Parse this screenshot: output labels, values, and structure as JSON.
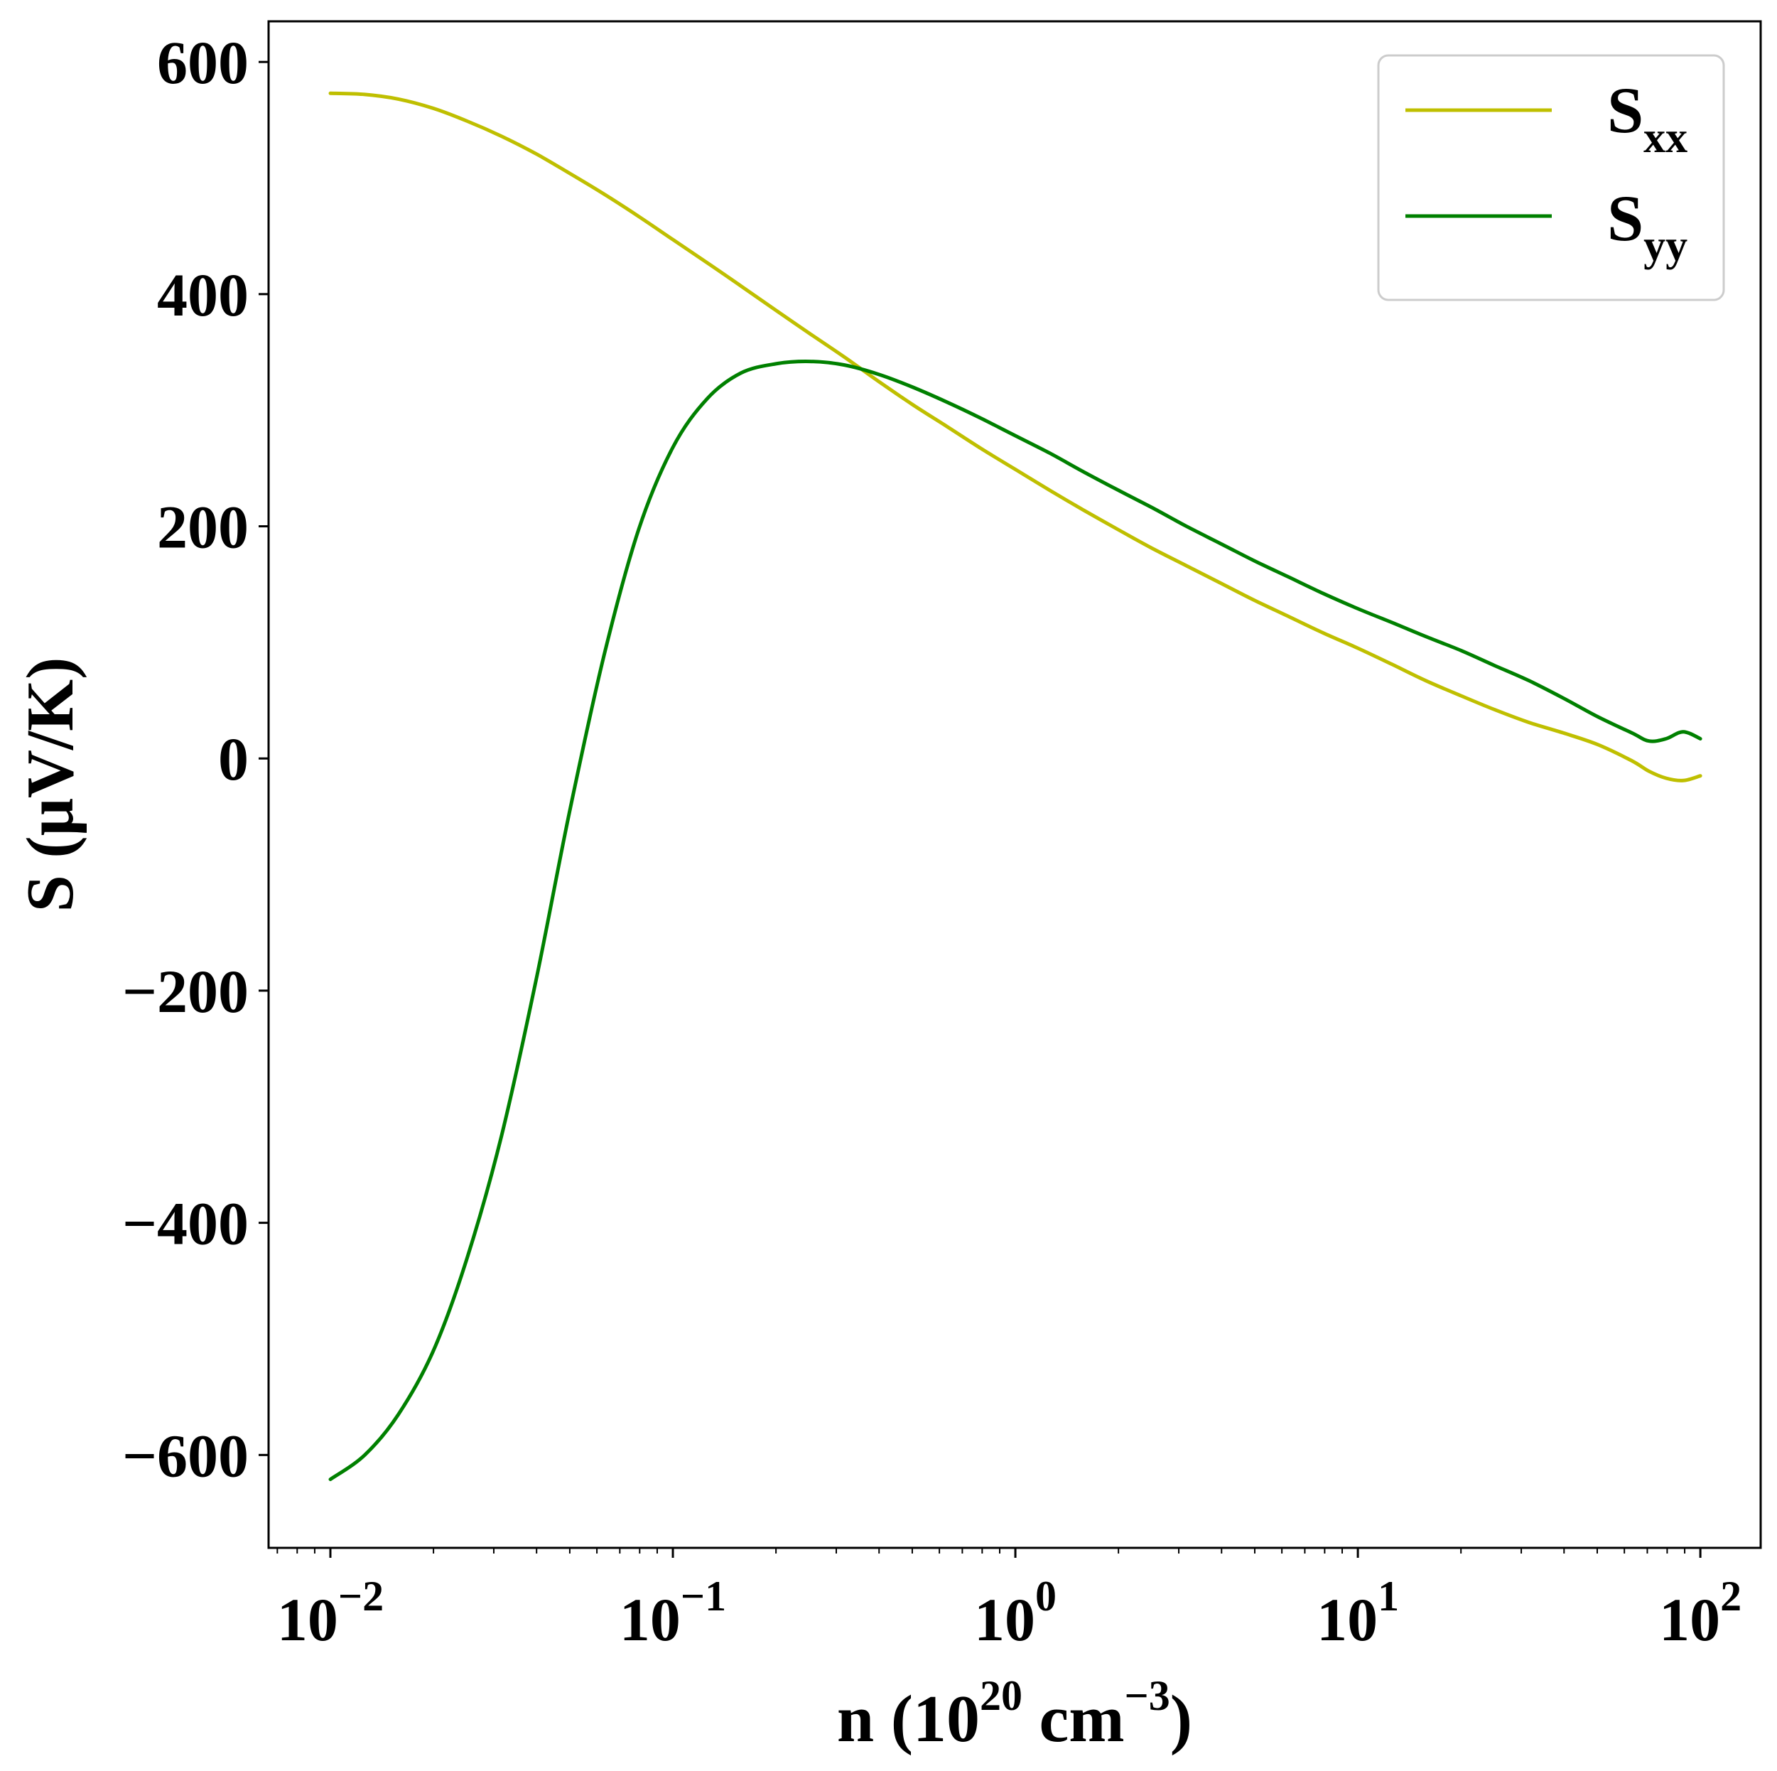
{
  "chart_data": {
    "type": "line",
    "xscale": "log",
    "xlim": [
      0.0066,
      150
    ],
    "ylim": [
      -680,
      635
    ],
    "xlabel": {
      "base": "n (10",
      "exp1": "20",
      "mid": " cm",
      "exp2": "−3",
      "end": ")"
    },
    "ylabel": "S (μV/K)",
    "x_ticks": [
      {
        "value": 0.01,
        "base": "10",
        "exp": "−2"
      },
      {
        "value": 0.1,
        "base": "10",
        "exp": "−1"
      },
      {
        "value": 1,
        "base": "10",
        "exp": "0"
      },
      {
        "value": 10,
        "base": "10",
        "exp": "1"
      },
      {
        "value": 100,
        "base": "10",
        "exp": "2"
      }
    ],
    "y_ticks": [
      {
        "value": -600,
        "label": "−600"
      },
      {
        "value": -400,
        "label": "−400"
      },
      {
        "value": -200,
        "label": "−200"
      },
      {
        "value": 0,
        "label": "0"
      },
      {
        "value": 200,
        "label": "200"
      },
      {
        "value": 400,
        "label": "400"
      },
      {
        "value": 600,
        "label": "600"
      }
    ],
    "grid": false,
    "legend_position": "top-right",
    "series": [
      {
        "name": "S_xx",
        "label_main": "S",
        "label_sub": "xx",
        "color": "#bfbf00",
        "points": [
          [
            0.01,
            573
          ],
          [
            0.0126,
            572
          ],
          [
            0.0158,
            568
          ],
          [
            0.02,
            560
          ],
          [
            0.0251,
            549
          ],
          [
            0.0316,
            536
          ],
          [
            0.0398,
            521
          ],
          [
            0.05,
            504
          ],
          [
            0.0631,
            486
          ],
          [
            0.0794,
            467
          ],
          [
            0.1,
            447
          ],
          [
            0.126,
            427
          ],
          [
            0.158,
            407
          ],
          [
            0.2,
            386
          ],
          [
            0.251,
            366
          ],
          [
            0.316,
            346
          ],
          [
            0.398,
            325
          ],
          [
            0.5,
            305
          ],
          [
            0.631,
            286
          ],
          [
            0.794,
            267
          ],
          [
            1.0,
            249
          ],
          [
            1.26,
            231
          ],
          [
            1.58,
            214
          ],
          [
            2.0,
            197
          ],
          [
            2.51,
            181
          ],
          [
            3.16,
            166
          ],
          [
            3.98,
            151
          ],
          [
            5.01,
            136
          ],
          [
            6.31,
            122
          ],
          [
            7.94,
            108
          ],
          [
            10.0,
            95
          ],
          [
            12.6,
            81
          ],
          [
            15.8,
            67
          ],
          [
            20.0,
            54
          ],
          [
            25.1,
            42
          ],
          [
            31.6,
            31
          ],
          [
            39.8,
            22
          ],
          [
            50.1,
            12
          ],
          [
            63.1,
            -2
          ],
          [
            70.8,
            -11
          ],
          [
            79.4,
            -17
          ],
          [
            89.1,
            -19
          ],
          [
            100,
            -15
          ]
        ]
      },
      {
        "name": "S_yy",
        "label_main": "S",
        "label_sub": "yy",
        "color": "#008000",
        "points": [
          [
            0.01,
            -621
          ],
          [
            0.0126,
            -600
          ],
          [
            0.0158,
            -565
          ],
          [
            0.02,
            -510
          ],
          [
            0.0251,
            -430
          ],
          [
            0.0316,
            -325
          ],
          [
            0.0398,
            -192
          ],
          [
            0.05,
            -45
          ],
          [
            0.0631,
            90
          ],
          [
            0.0794,
            197
          ],
          [
            0.1,
            268
          ],
          [
            0.126,
            310
          ],
          [
            0.158,
            332
          ],
          [
            0.2,
            340
          ],
          [
            0.251,
            342
          ],
          [
            0.316,
            339
          ],
          [
            0.398,
            331
          ],
          [
            0.5,
            320
          ],
          [
            0.631,
            307
          ],
          [
            0.794,
            293
          ],
          [
            1.0,
            278
          ],
          [
            1.26,
            263
          ],
          [
            1.58,
            247
          ],
          [
            2.0,
            231
          ],
          [
            2.51,
            216
          ],
          [
            3.16,
            200
          ],
          [
            3.98,
            185
          ],
          [
            5.01,
            170
          ],
          [
            6.31,
            156
          ],
          [
            7.94,
            142
          ],
          [
            10.0,
            129
          ],
          [
            12.6,
            117
          ],
          [
            15.8,
            105
          ],
          [
            20.0,
            93
          ],
          [
            25.1,
            80
          ],
          [
            31.6,
            67
          ],
          [
            39.8,
            52
          ],
          [
            50.1,
            36
          ],
          [
            63.1,
            22
          ],
          [
            70.8,
            15
          ],
          [
            79.4,
            17
          ],
          [
            89.1,
            23
          ],
          [
            100,
            17
          ]
        ]
      }
    ]
  }
}
